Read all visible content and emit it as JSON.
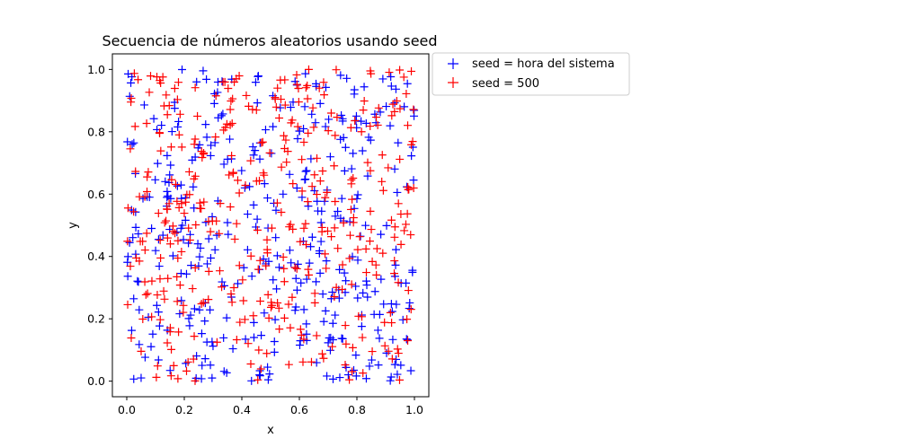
{
  "chart_data": {
    "type": "scatter",
    "title": "Secuencia de números aleatorios usando seed",
    "xlabel": "x",
    "ylabel": "y",
    "xlim": [
      -0.05,
      1.05
    ],
    "ylim": [
      -0.05,
      1.05
    ],
    "xticks": [
      "0.0",
      "0.2",
      "0.4",
      "0.6",
      "0.8",
      "1.0"
    ],
    "yticks": [
      "0.0",
      "0.2",
      "0.4",
      "0.6",
      "0.8",
      "1.0"
    ],
    "grid": false,
    "marker": "+",
    "legend_position": "outside-top-right",
    "points_per_series": 400,
    "series": [
      {
        "name": "seed = hora del sistema",
        "color": "#0000ff",
        "generator_seed": 20231,
        "x_range": [
          0.0,
          1.0
        ],
        "y_range": [
          0.0,
          1.0
        ]
      },
      {
        "name": "seed = 500",
        "color": "#ff0000",
        "generator_seed": 500,
        "x_range": [
          0.0,
          1.0
        ],
        "y_range": [
          0.0,
          1.0
        ]
      }
    ]
  }
}
